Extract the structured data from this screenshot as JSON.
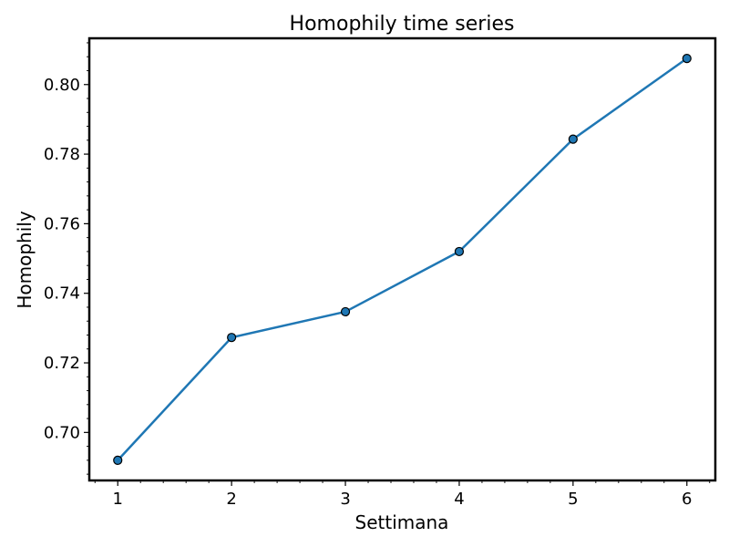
{
  "chart_data": {
    "type": "line",
    "title": "Homophily time series",
    "xlabel": "Settimana",
    "ylabel": "Homophily",
    "x": [
      1,
      2,
      3,
      4,
      5,
      6
    ],
    "series": [
      {
        "values": [
          0.692,
          0.7273,
          0.7347,
          0.752,
          0.7843,
          0.8075
        ]
      }
    ],
    "x_ticks": [
      1,
      2,
      3,
      4,
      5,
      6
    ],
    "x_tick_labels": [
      "1",
      "2",
      "3",
      "4",
      "5",
      "6"
    ],
    "y_ticks": [
      0.7,
      0.72,
      0.74,
      0.76,
      0.78,
      0.8
    ],
    "y_tick_labels": [
      "0.70",
      "0.72",
      "0.74",
      "0.76",
      "0.78",
      "0.80"
    ],
    "xlim": [
      0.75,
      6.25
    ],
    "ylim": [
      0.6862,
      0.8133
    ],
    "grid": false,
    "minor_ticks": true,
    "colors": {
      "line": "#1f77b4",
      "marker_edge": "#000000"
    }
  }
}
